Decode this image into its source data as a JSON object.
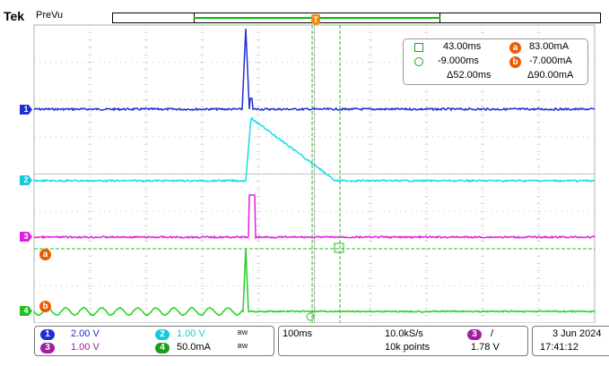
{
  "header": {
    "brand": "Tek",
    "mode": "PreVu",
    "trigger_marker": "T"
  },
  "colors": {
    "ch1": "#1f2fd6",
    "ch2": "#18dce8",
    "ch3": "#e020e0",
    "ch4": "#22d022",
    "cursor": "#22c022",
    "grid": "#b0b0b0",
    "badge": "#e85c00"
  },
  "cursors": {
    "time_a": "43.00ms",
    "time_b": "-9.000ms",
    "time_delta": "Δ52.00ms",
    "val_a": "83.00mA",
    "val_b": "-7.000mA",
    "val_delta": "Δ90.00mA",
    "badge_a": "a",
    "badge_b": "b",
    "square_icon": "square-cursor-icon",
    "circle_icon": "circle-cursor-icon"
  },
  "channel_markers": {
    "ch1": "1",
    "ch2": "2",
    "ch3": "3",
    "ch4": "4",
    "a": "a",
    "b": "b"
  },
  "footer": {
    "ch1_num": "1",
    "ch1_scale": "2.00 V",
    "ch2_num": "2",
    "ch2_scale": "1.00 V",
    "ch3_num": "3",
    "ch3_scale": "1.00 V",
    "ch4_num": "4",
    "ch4_scale": "50.0mA",
    "bw_label": "BW",
    "timebase": "100ms",
    "sample_rate": "10.0kS/s",
    "record_length": "10k points",
    "trig_channel": "3",
    "trig_slope": "/",
    "trig_level": "1.78 V",
    "date": "3 Jun 2024",
    "time": "17:41:12"
  }
}
